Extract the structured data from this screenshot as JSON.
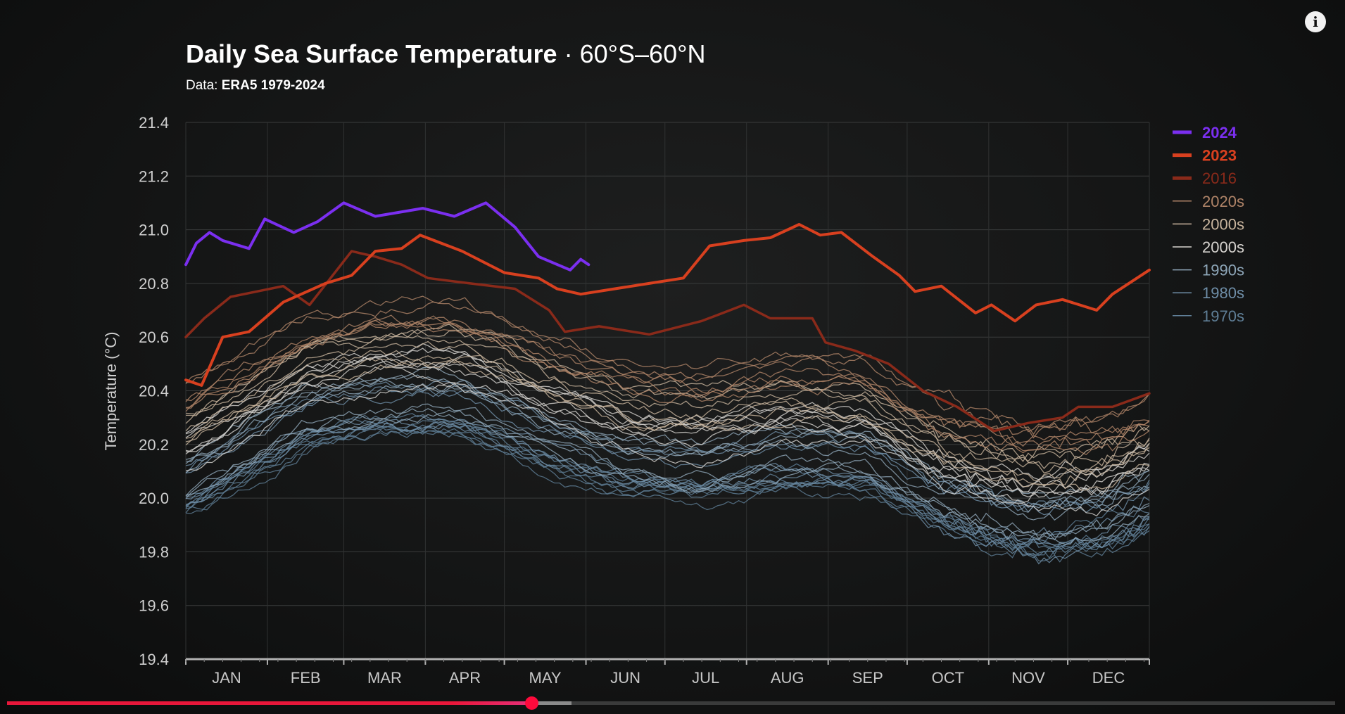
{
  "chart_data": {
    "type": "line",
    "title": "Daily Sea Surface Temperature",
    "title_suffix": "· 60°S–60°N",
    "subtitle_label": "Data:",
    "subtitle_source": "ERA5 1979-2024",
    "ylabel": "Temperature (°C)",
    "xlabel": "",
    "ylim": [
      19.4,
      21.4
    ],
    "xlim": [
      0,
      366
    ],
    "x_unit": "day of year",
    "yticks": [
      "21.4",
      "21.2",
      "21.0",
      "20.8",
      "20.6",
      "20.4",
      "20.2",
      "20.0",
      "19.8",
      "19.6",
      "19.4"
    ],
    "month_labels": [
      "JAN",
      "FEB",
      "MAR",
      "APR",
      "MAY",
      "JUN",
      "JUL",
      "AUG",
      "SEP",
      "OCT",
      "NOV",
      "DEC"
    ],
    "grid": true,
    "legend_position": "right",
    "series": [
      {
        "name": "2024",
        "color": "#7b2ff0",
        "width": 4,
        "bold": true,
        "x": [
          0,
          4,
          9,
          14,
          24,
          30,
          41,
          50,
          60,
          72,
          90,
          102,
          114,
          125,
          134,
          146,
          150,
          153
        ],
        "y": [
          20.87,
          20.95,
          20.99,
          20.96,
          20.93,
          21.04,
          20.99,
          21.03,
          21.1,
          21.05,
          21.08,
          21.05,
          21.1,
          21.01,
          20.9,
          20.85,
          20.89,
          20.87
        ]
      },
      {
        "name": "2023",
        "color": "#d8401f",
        "width": 4,
        "bold": true,
        "x": [
          0,
          6,
          14,
          24,
          37,
          53,
          63,
          72,
          82,
          89,
          105,
          121,
          134,
          141,
          150,
          163,
          176,
          189,
          199,
          212,
          222,
          233,
          241,
          249,
          261,
          271,
          277,
          287,
          300,
          306,
          315,
          323,
          333,
          346,
          352,
          366
        ],
        "y": [
          20.44,
          20.42,
          20.6,
          20.62,
          20.73,
          20.8,
          20.83,
          20.92,
          20.93,
          20.98,
          20.92,
          20.84,
          20.82,
          20.78,
          20.76,
          20.78,
          20.8,
          20.82,
          20.94,
          20.96,
          20.97,
          21.02,
          20.98,
          20.99,
          20.9,
          20.83,
          20.77,
          20.79,
          20.69,
          20.72,
          20.66,
          20.72,
          20.74,
          20.7,
          20.76,
          20.85
        ]
      },
      {
        "name": "2016",
        "color": "#8a2a1a",
        "width": 3.5,
        "bold": false,
        "x": [
          0,
          7,
          17,
          37,
          47,
          55,
          63,
          72,
          82,
          92,
          108,
          125,
          138,
          144,
          157,
          176,
          196,
          212,
          222,
          238,
          243,
          254,
          267,
          280,
          293,
          307,
          320,
          333,
          339,
          352,
          366
        ],
        "y": [
          20.6,
          20.67,
          20.75,
          20.79,
          20.72,
          20.82,
          20.92,
          20.9,
          20.87,
          20.82,
          20.8,
          20.78,
          20.7,
          20.62,
          20.64,
          20.61,
          20.66,
          20.72,
          20.67,
          20.67,
          20.58,
          20.55,
          20.5,
          20.4,
          20.34,
          20.25,
          20.28,
          20.3,
          20.34,
          20.34,
          20.39
        ]
      }
    ],
    "decades": [
      {
        "name": "2020s",
        "color": "#b08468",
        "offset": 0.38
      },
      {
        "name": "2000s",
        "color": "#c9b59e",
        "offset": 0.26
      },
      {
        "name": "2000s",
        "color": "#d6d3cf",
        "offset": 0.16
      },
      {
        "name": "1990s",
        "color": "#8ea6b8",
        "offset": 0.08
      },
      {
        "name": "1980s",
        "color": "#6f8ea8",
        "offset": 0.03
      },
      {
        "name": "1970s",
        "color": "#5f7e96",
        "offset": 0.0
      }
    ],
    "decade_baseline": {
      "x": [
        0,
        15,
        45,
        74,
        105,
        135,
        166,
        196,
        227,
        258,
        288,
        319,
        349,
        366
      ],
      "y": [
        20.0,
        20.08,
        20.25,
        20.3,
        20.3,
        20.18,
        20.08,
        20.05,
        20.1,
        20.08,
        19.93,
        19.85,
        19.88,
        19.95
      ]
    }
  },
  "player": {
    "progress_percent": 39.5,
    "buffered_percent": 42.5
  },
  "info_label": "i"
}
